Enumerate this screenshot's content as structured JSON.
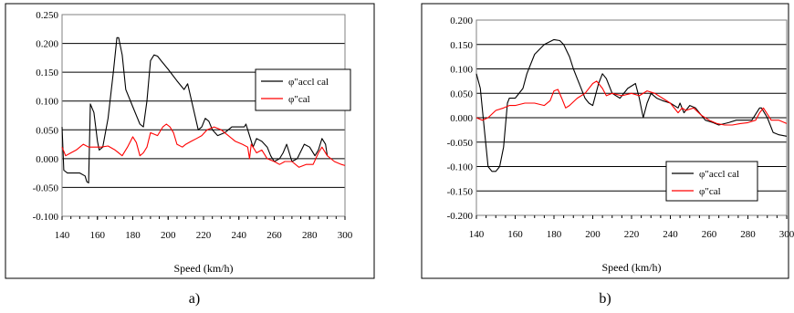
{
  "chart_data": [
    {
      "type": "line",
      "xlabel": "Speed (km/h)",
      "ylabel": "",
      "xlim": [
        140,
        300
      ],
      "ylim": [
        -0.1,
        0.25
      ],
      "x_ticks": [
        "140",
        "160",
        "180",
        "200",
        "220",
        "240",
        "260",
        "280",
        "300"
      ],
      "y_ticks": [
        "-0.100",
        "-0.050",
        "0.000",
        "0.050",
        "0.100",
        "0.150",
        "0.200",
        "0.250"
      ],
      "grid": "horizontal",
      "legend_position": "right",
      "caption": "a)",
      "series": [
        {
          "name": "φ\"accl cal",
          "color": "#000000",
          "x": [
            140,
            141,
            143,
            146,
            150,
            153,
            154,
            155,
            156,
            158,
            160,
            161,
            163,
            166,
            169,
            171,
            172,
            174,
            176,
            180,
            184,
            186,
            188,
            190,
            192,
            194,
            196,
            200,
            205,
            209,
            211,
            214,
            217,
            219,
            221,
            223,
            225,
            228,
            232,
            236,
            240,
            243,
            244,
            246,
            248,
            250,
            253,
            256,
            258,
            260,
            263,
            265,
            267,
            270,
            273,
            277,
            280,
            283,
            285,
            287,
            289,
            290
          ],
          "y": [
            0.055,
            -0.02,
            -0.025,
            -0.025,
            -0.025,
            -0.03,
            -0.04,
            -0.042,
            0.095,
            0.08,
            0.03,
            0.015,
            0.02,
            0.07,
            0.15,
            0.21,
            0.21,
            0.18,
            0.12,
            0.09,
            0.06,
            0.055,
            0.1,
            0.17,
            0.18,
            0.178,
            0.17,
            0.155,
            0.135,
            0.12,
            0.13,
            0.09,
            0.05,
            0.055,
            0.07,
            0.065,
            0.05,
            0.04,
            0.045,
            0.055,
            0.055,
            0.055,
            0.06,
            0.04,
            0.02,
            0.035,
            0.03,
            0.02,
            0.005,
            -0.005,
            0.0,
            0.01,
            0.025,
            -0.005,
            0.0,
            0.025,
            0.02,
            0.005,
            0.015,
            0.035,
            0.025,
            0.005
          ]
        },
        {
          "name": "φ\"cal",
          "color": "#ff0000",
          "x": [
            140,
            142,
            145,
            148,
            152,
            155,
            158,
            162,
            166,
            170,
            174,
            177,
            180,
            182,
            184,
            186,
            188,
            190,
            194,
            197,
            199,
            201,
            203,
            205,
            208,
            210,
            213,
            216,
            219,
            222,
            226,
            230,
            234,
            238,
            242,
            245,
            246,
            247,
            250,
            253,
            256,
            260,
            263,
            266,
            270,
            274,
            278,
            282,
            285,
            287,
            290,
            294,
            298,
            300
          ],
          "y": [
            0.02,
            0.005,
            0.01,
            0.015,
            0.025,
            0.02,
            0.02,
            0.02,
            0.022,
            0.015,
            0.005,
            0.02,
            0.038,
            0.028,
            0.005,
            0.01,
            0.02,
            0.045,
            0.04,
            0.055,
            0.06,
            0.055,
            0.045,
            0.025,
            0.02,
            0.025,
            0.03,
            0.035,
            0.04,
            0.05,
            0.055,
            0.05,
            0.04,
            0.03,
            0.025,
            0.02,
            0.0,
            0.025,
            0.01,
            0.015,
            0.0,
            -0.005,
            -0.01,
            -0.005,
            -0.005,
            -0.015,
            -0.01,
            -0.01,
            0.01,
            0.02,
            0.005,
            -0.005,
            -0.01,
            -0.012
          ]
        }
      ]
    },
    {
      "type": "line",
      "xlabel": "Speed (km/h)",
      "ylabel": "",
      "xlim": [
        140,
        300
      ],
      "ylim": [
        -0.2,
        0.2
      ],
      "x_ticks": [
        "140",
        "160",
        "180",
        "200",
        "220",
        "240",
        "260",
        "280",
        "300"
      ],
      "y_ticks": [
        "-0.200",
        "-0.150",
        "-0.100",
        "-0.050",
        "0.000",
        "0.050",
        "0.100",
        "0.150",
        "0.200"
      ],
      "grid": "horizontal",
      "legend_position": "bottom-right",
      "caption": "b)",
      "series": [
        {
          "name": "φ\"accl cal",
          "color": "#000000",
          "x": [
            140,
            142,
            144,
            146,
            148,
            150,
            152,
            154,
            156,
            157,
            160,
            164,
            166,
            170,
            175,
            180,
            183,
            185,
            188,
            190,
            192,
            194,
            196,
            198,
            200,
            203,
            205,
            207,
            208,
            210,
            214,
            218,
            222,
            224,
            226,
            228,
            230,
            233,
            236,
            240,
            244,
            245,
            247,
            250,
            253,
            256,
            258,
            262,
            265,
            270,
            274,
            278,
            282,
            286,
            287,
            290,
            293,
            296,
            300
          ],
          "y": [
            0.09,
            0.06,
            -0.02,
            -0.1,
            -0.11,
            -0.11,
            -0.1,
            -0.06,
            0.03,
            0.04,
            0.04,
            0.06,
            0.09,
            0.13,
            0.15,
            0.16,
            0.158,
            0.15,
            0.125,
            0.1,
            0.08,
            0.06,
            0.04,
            0.03,
            0.025,
            0.07,
            0.09,
            0.08,
            0.07,
            0.05,
            0.04,
            0.06,
            0.07,
            0.04,
            0.0,
            0.03,
            0.05,
            0.04,
            0.035,
            0.03,
            0.02,
            0.03,
            0.01,
            0.025,
            0.02,
            0.005,
            -0.005,
            -0.01,
            -0.015,
            -0.01,
            -0.005,
            -0.005,
            -0.005,
            0.02,
            0.02,
            0.0,
            -0.03,
            -0.035,
            -0.038
          ]
        },
        {
          "name": "φ\"cal",
          "color": "#ff0000",
          "x": [
            140,
            143,
            146,
            150,
            154,
            157,
            160,
            165,
            170,
            175,
            178,
            180,
            182,
            184,
            186,
            188,
            192,
            196,
            200,
            202,
            205,
            207,
            210,
            215,
            220,
            224,
            228,
            232,
            236,
            240,
            244,
            246,
            248,
            252,
            256,
            260,
            264,
            268,
            272,
            276,
            280,
            284,
            286,
            288,
            292,
            296,
            300
          ],
          "y": [
            0.0,
            -0.005,
            0.0,
            0.015,
            0.02,
            0.025,
            0.025,
            0.03,
            0.03,
            0.025,
            0.035,
            0.055,
            0.058,
            0.04,
            0.02,
            0.025,
            0.04,
            0.05,
            0.07,
            0.075,
            0.06,
            0.045,
            0.05,
            0.045,
            0.05,
            0.045,
            0.055,
            0.05,
            0.04,
            0.03,
            0.01,
            0.02,
            0.015,
            0.02,
            0.005,
            -0.005,
            -0.012,
            -0.015,
            -0.015,
            -0.012,
            -0.01,
            -0.005,
            0.01,
            0.02,
            -0.005,
            -0.005,
            -0.012
          ]
        }
      ]
    }
  ]
}
